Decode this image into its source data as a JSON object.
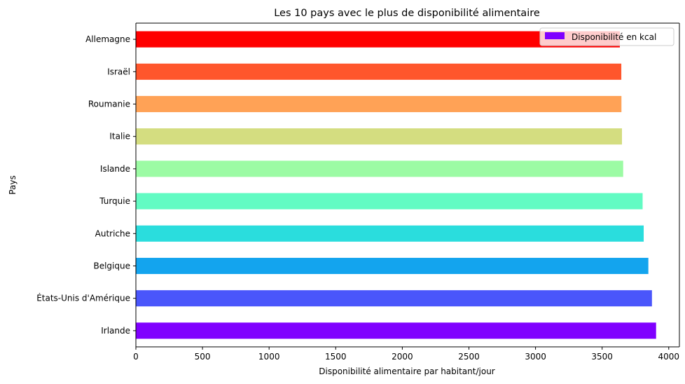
{
  "chart_data": {
    "type": "bar",
    "orientation": "horizontal",
    "title": "Les 10 pays avec le plus de disponibilité alimentaire",
    "xlabel": "Disponibilité alimentaire par habitant/jour",
    "ylabel": "Pays",
    "xlim": [
      0,
      4080
    ],
    "xticks": [
      0,
      500,
      1000,
      1500,
      2000,
      2500,
      3000,
      3500,
      4000
    ],
    "grid": false,
    "legend_position": "top-right",
    "categories": [
      "Irlande",
      "États-Unis d'Amérique",
      "Belgique",
      "Autriche",
      "Turquie",
      "Islande",
      "Italie",
      "Roumanie",
      "Israël",
      "Allemagne"
    ],
    "series": [
      {
        "name": "Disponibilité en kcal",
        "legend_color": "#8000ff",
        "values": [
          3905,
          3874,
          3847,
          3812,
          3804,
          3658,
          3649,
          3645,
          3644,
          3633
        ],
        "colors": [
          "#8000ff",
          "#4a56fb",
          "#13a4ee",
          "#2adddd",
          "#62fbc3",
          "#9cfba4",
          "#d4dd80",
          "#ffa256",
          "#ff562c",
          "#ff0000"
        ]
      }
    ]
  }
}
